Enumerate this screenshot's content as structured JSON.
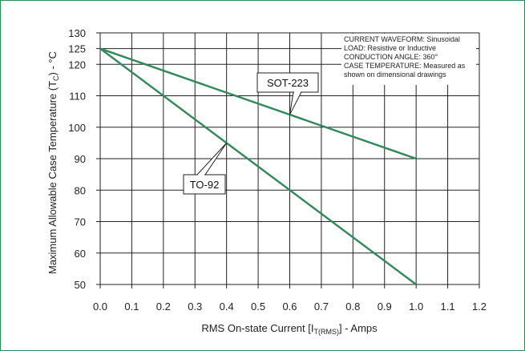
{
  "chart_data": {
    "type": "line",
    "xlabel_main": "RMS On-state Current [I",
    "xlabel_sub": "T(RMS)",
    "xlabel_tail": "] - Amps",
    "ylabel_main": "Maximum Allowable Case Temperature (T",
    "ylabel_sub": "C",
    "ylabel_tail": ") - °C",
    "xlim": [
      0.0,
      1.2
    ],
    "ylim": [
      50,
      130
    ],
    "xticks": [
      "0.0",
      "0.1",
      "0.2",
      "0.3",
      "0.4",
      "0.5",
      "0.6",
      "0.7",
      "0.8",
      "0.9",
      "1.0",
      "1.1",
      "1.2"
    ],
    "yticks": [
      {
        "value": 50,
        "label": "50"
      },
      {
        "value": 60,
        "label": "60"
      },
      {
        "value": 70,
        "label": "70"
      },
      {
        "value": 80,
        "label": "80"
      },
      {
        "value": 90,
        "label": "90"
      },
      {
        "value": 100,
        "label": "100"
      },
      {
        "value": 110,
        "label": "110"
      },
      {
        "value": 120,
        "label": "120"
      },
      {
        "value": 125,
        "label": "125"
      },
      {
        "value": 130,
        "label": "130"
      }
    ],
    "grid": true,
    "series": [
      {
        "name": "SOT-223",
        "x": [
          0.0,
          1.0
        ],
        "y": [
          125,
          90
        ],
        "color": "#2e8b57"
      },
      {
        "name": "TO-92",
        "x": [
          0.0,
          1.0
        ],
        "y": [
          125,
          50
        ],
        "color": "#2e8b57"
      }
    ],
    "annotations": [
      {
        "text": "SOT-223",
        "series": "SOT-223",
        "point": [
          0.6,
          104
        ]
      },
      {
        "text": "TO-92",
        "series": "TO-92",
        "point": [
          0.4,
          95
        ]
      }
    ],
    "notes": [
      "CURRENT WAVEFORM: Sinusoidal",
      "LOAD: Resistive or Inductive",
      "CONDUCTION ANGLE: 360°",
      "CASE TEMPERATURE: Measured as",
      "shown on dimensional drawings"
    ]
  },
  "colors": {
    "accent": "#2e8b57",
    "grid": "#222222"
  }
}
